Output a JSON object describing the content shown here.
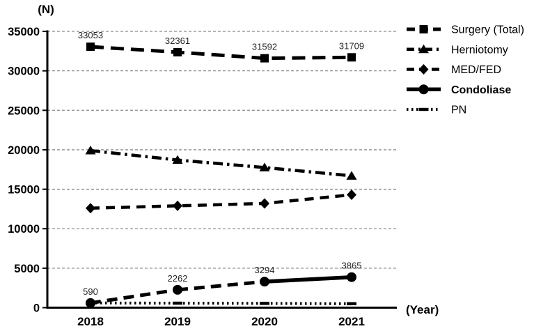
{
  "chart_data": {
    "type": "line",
    "title": "",
    "ylabel": "(N)",
    "xlabel": "(Year)",
    "x": [
      "2018",
      "2019",
      "2020",
      "2021"
    ],
    "ylim": [
      0,
      35000
    ],
    "ytick_step": 5000,
    "ytick_labels": [
      "0",
      "5000",
      "10000",
      "15000",
      "20000",
      "25000",
      "30000",
      "35000"
    ],
    "grid": "horizontal-dashed",
    "legend_position": "top-right",
    "colors": {
      "series": "#000000",
      "grid": "#8a8a8a",
      "value_labels": "#262626"
    },
    "series": [
      {
        "name": "Surgery (Total)",
        "values": [
          33053,
          32361,
          31592,
          31709
        ],
        "value_labels": [
          "33053",
          "32361",
          "31592",
          "31709"
        ],
        "line_style": "dashed-long",
        "marker": "square"
      },
      {
        "name": "Herniotomy",
        "values": [
          19900,
          18700,
          17750,
          16700
        ],
        "estimated": true,
        "line_style": "dash-dot",
        "marker": "triangle"
      },
      {
        "name": "MED/FED",
        "values": [
          12600,
          12900,
          13200,
          14300
        ],
        "estimated": true,
        "line_style": "dashed",
        "marker": "diamond"
      },
      {
        "name": "Condoliase",
        "values": [
          590,
          2262,
          3294,
          3865
        ],
        "value_labels": [
          "590",
          "2262",
          "3294",
          "3865"
        ],
        "line_style": "solid",
        "segment_styles": [
          "dashed-thick",
          "dashed-thick",
          "solid"
        ],
        "marker": "circle",
        "bold_label": true
      },
      {
        "name": "PN",
        "values": [
          600,
          570,
          540,
          500
        ],
        "estimated": true,
        "line_style": "dotted",
        "marker": "dash"
      }
    ]
  }
}
